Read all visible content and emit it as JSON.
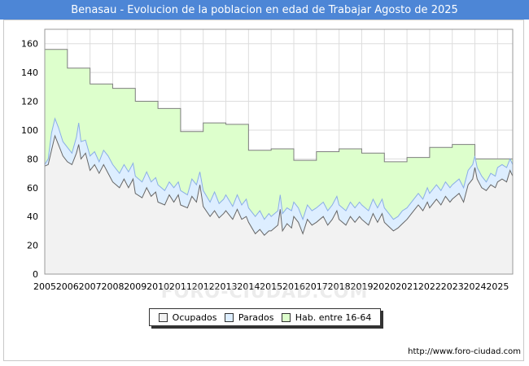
{
  "header": {
    "title": "Benasau - Evolucion de la poblacion en edad de Trabajar Agosto de 2025"
  },
  "footer": {
    "source": "http://www.foro-ciudad.com",
    "watermark": "FORO-CIUDAD.COM"
  },
  "colors": {
    "header_bg": "#4d86d6",
    "ocupados_fill": "#f2f2f2",
    "ocupados_line": "#666666",
    "parados_fill": "#ddeeff",
    "parados_line": "#8aaee6",
    "hab_fill": "#ddffcc",
    "hab_line": "#7f7f7f"
  },
  "chart_data": {
    "type": "area",
    "xlim": [
      2005,
      2025.67
    ],
    "ylim": [
      0,
      170
    ],
    "yticks": [
      0,
      20,
      40,
      60,
      80,
      100,
      120,
      140,
      160
    ],
    "xticks": [
      "2005",
      "2006",
      "2007",
      "2008",
      "2009",
      "2010",
      "2011",
      "2012",
      "2013",
      "2014",
      "2015",
      "2016",
      "2017",
      "2018",
      "2019",
      "2020",
      "2021",
      "2022",
      "2023",
      "2024",
      "2025"
    ],
    "grid": true,
    "legend_position": "bottom",
    "series": [
      {
        "name": "Hab. entre 16-64",
        "kind": "step",
        "x": [
          2005,
          2006,
          2007,
          2008,
          2009,
          2010,
          2011,
          2012,
          2013,
          2014,
          2015,
          2016,
          2017,
          2018,
          2019,
          2020,
          2021,
          2022,
          2023,
          2024
        ],
        "values": [
          156,
          143,
          132,
          129,
          120,
          115,
          99,
          105,
          104,
          86,
          87,
          79,
          85,
          87,
          84,
          78,
          81,
          88,
          90,
          80
        ]
      },
      {
        "name": "Parados",
        "kind": "line",
        "points": [
          [
            2005,
            76
          ],
          [
            2005.15,
            80
          ],
          [
            2005.3,
            98
          ],
          [
            2005.45,
            108
          ],
          [
            2005.6,
            102
          ],
          [
            2005.8,
            92
          ],
          [
            2006,
            88
          ],
          [
            2006.2,
            84
          ],
          [
            2006.4,
            95
          ],
          [
            2006.5,
            105
          ],
          [
            2006.6,
            92
          ],
          [
            2006.8,
            93
          ],
          [
            2007,
            82
          ],
          [
            2007.2,
            85
          ],
          [
            2007.4,
            78
          ],
          [
            2007.6,
            86
          ],
          [
            2007.8,
            82
          ],
          [
            2008,
            76
          ],
          [
            2008.3,
            70
          ],
          [
            2008.5,
            76
          ],
          [
            2008.7,
            71
          ],
          [
            2008.9,
            77
          ],
          [
            2009,
            68
          ],
          [
            2009.3,
            64
          ],
          [
            2009.5,
            71
          ],
          [
            2009.7,
            64
          ],
          [
            2009.9,
            67
          ],
          [
            2010,
            62
          ],
          [
            2010.3,
            58
          ],
          [
            2010.5,
            64
          ],
          [
            2010.7,
            60
          ],
          [
            2010.9,
            64
          ],
          [
            2011,
            58
          ],
          [
            2011.3,
            55
          ],
          [
            2011.5,
            66
          ],
          [
            2011.7,
            62
          ],
          [
            2011.85,
            71
          ],
          [
            2012,
            58
          ],
          [
            2012.3,
            50
          ],
          [
            2012.5,
            57
          ],
          [
            2012.7,
            49
          ],
          [
            2012.9,
            52
          ],
          [
            2013,
            55
          ],
          [
            2013.3,
            47
          ],
          [
            2013.5,
            55
          ],
          [
            2013.7,
            48
          ],
          [
            2013.9,
            52
          ],
          [
            2014,
            46
          ],
          [
            2014.3,
            40
          ],
          [
            2014.5,
            44
          ],
          [
            2014.7,
            38
          ],
          [
            2014.9,
            42
          ],
          [
            2015,
            40
          ],
          [
            2015.3,
            44
          ],
          [
            2015.4,
            55
          ],
          [
            2015.5,
            42
          ],
          [
            2015.7,
            46
          ],
          [
            2015.9,
            44
          ],
          [
            2016,
            50
          ],
          [
            2016.2,
            46
          ],
          [
            2016.4,
            38
          ],
          [
            2016.6,
            48
          ],
          [
            2016.8,
            44
          ],
          [
            2017,
            46
          ],
          [
            2017.3,
            50
          ],
          [
            2017.5,
            44
          ],
          [
            2017.7,
            48
          ],
          [
            2017.9,
            54
          ],
          [
            2018,
            48
          ],
          [
            2018.3,
            44
          ],
          [
            2018.5,
            50
          ],
          [
            2018.7,
            46
          ],
          [
            2018.9,
            50
          ],
          [
            2019,
            48
          ],
          [
            2019.3,
            44
          ],
          [
            2019.5,
            52
          ],
          [
            2019.7,
            46
          ],
          [
            2019.9,
            52
          ],
          [
            2020,
            46
          ],
          [
            2020.2,
            42
          ],
          [
            2020.4,
            38
          ],
          [
            2020.6,
            40
          ],
          [
            2020.8,
            44
          ],
          [
            2021,
            46
          ],
          [
            2021.3,
            52
          ],
          [
            2021.5,
            56
          ],
          [
            2021.7,
            52
          ],
          [
            2021.9,
            60
          ],
          [
            2022,
            56
          ],
          [
            2022.3,
            62
          ],
          [
            2022.5,
            58
          ],
          [
            2022.7,
            64
          ],
          [
            2022.9,
            60
          ],
          [
            2023,
            62
          ],
          [
            2023.3,
            66
          ],
          [
            2023.5,
            60
          ],
          [
            2023.7,
            72
          ],
          [
            2023.9,
            76
          ],
          [
            2024,
            82
          ],
          [
            2024.1,
            74
          ],
          [
            2024.3,
            68
          ],
          [
            2024.5,
            64
          ],
          [
            2024.7,
            70
          ],
          [
            2024.9,
            68
          ],
          [
            2025,
            74
          ],
          [
            2025.2,
            76
          ],
          [
            2025.4,
            74
          ],
          [
            2025.55,
            80
          ],
          [
            2025.67,
            76
          ]
        ]
      },
      {
        "name": "Ocupados",
        "kind": "line",
        "points": [
          [
            2005,
            75
          ],
          [
            2005.15,
            76
          ],
          [
            2005.3,
            86
          ],
          [
            2005.45,
            96
          ],
          [
            2005.6,
            90
          ],
          [
            2005.8,
            82
          ],
          [
            2006,
            78
          ],
          [
            2006.2,
            76
          ],
          [
            2006.4,
            84
          ],
          [
            2006.5,
            90
          ],
          [
            2006.6,
            80
          ],
          [
            2006.8,
            84
          ],
          [
            2007,
            72
          ],
          [
            2007.2,
            76
          ],
          [
            2007.4,
            70
          ],
          [
            2007.6,
            76
          ],
          [
            2007.8,
            70
          ],
          [
            2008,
            64
          ],
          [
            2008.3,
            60
          ],
          [
            2008.5,
            66
          ],
          [
            2008.7,
            60
          ],
          [
            2008.9,
            66
          ],
          [
            2009,
            56
          ],
          [
            2009.3,
            53
          ],
          [
            2009.5,
            60
          ],
          [
            2009.7,
            54
          ],
          [
            2009.9,
            57
          ],
          [
            2010,
            50
          ],
          [
            2010.3,
            48
          ],
          [
            2010.5,
            55
          ],
          [
            2010.7,
            50
          ],
          [
            2010.9,
            55
          ],
          [
            2011,
            48
          ],
          [
            2011.3,
            46
          ],
          [
            2011.5,
            54
          ],
          [
            2011.7,
            50
          ],
          [
            2011.85,
            62
          ],
          [
            2012,
            47
          ],
          [
            2012.3,
            40
          ],
          [
            2012.5,
            44
          ],
          [
            2012.7,
            39
          ],
          [
            2012.9,
            42
          ],
          [
            2013,
            44
          ],
          [
            2013.3,
            38
          ],
          [
            2013.5,
            45
          ],
          [
            2013.7,
            38
          ],
          [
            2013.9,
            40
          ],
          [
            2014,
            36
          ],
          [
            2014.3,
            28
          ],
          [
            2014.5,
            31
          ],
          [
            2014.7,
            27
          ],
          [
            2014.9,
            30
          ],
          [
            2015,
            30
          ],
          [
            2015.3,
            34
          ],
          [
            2015.4,
            45
          ],
          [
            2015.5,
            30
          ],
          [
            2015.7,
            35
          ],
          [
            2015.9,
            32
          ],
          [
            2016,
            40
          ],
          [
            2016.2,
            36
          ],
          [
            2016.4,
            28
          ],
          [
            2016.6,
            38
          ],
          [
            2016.8,
            34
          ],
          [
            2017,
            36
          ],
          [
            2017.3,
            40
          ],
          [
            2017.5,
            34
          ],
          [
            2017.7,
            38
          ],
          [
            2017.9,
            44
          ],
          [
            2018,
            38
          ],
          [
            2018.3,
            34
          ],
          [
            2018.5,
            40
          ],
          [
            2018.7,
            36
          ],
          [
            2018.9,
            40
          ],
          [
            2019,
            38
          ],
          [
            2019.3,
            34
          ],
          [
            2019.5,
            42
          ],
          [
            2019.7,
            36
          ],
          [
            2019.9,
            42
          ],
          [
            2020,
            36
          ],
          [
            2020.2,
            33
          ],
          [
            2020.4,
            30
          ],
          [
            2020.6,
            32
          ],
          [
            2020.8,
            35
          ],
          [
            2021,
            38
          ],
          [
            2021.3,
            44
          ],
          [
            2021.5,
            48
          ],
          [
            2021.7,
            44
          ],
          [
            2021.9,
            50
          ],
          [
            2022,
            46
          ],
          [
            2022.3,
            52
          ],
          [
            2022.5,
            48
          ],
          [
            2022.7,
            54
          ],
          [
            2022.9,
            50
          ],
          [
            2023,
            52
          ],
          [
            2023.3,
            56
          ],
          [
            2023.5,
            50
          ],
          [
            2023.7,
            62
          ],
          [
            2023.9,
            66
          ],
          [
            2024,
            74
          ],
          [
            2024.1,
            66
          ],
          [
            2024.3,
            60
          ],
          [
            2024.5,
            58
          ],
          [
            2024.7,
            62
          ],
          [
            2024.9,
            60
          ],
          [
            2025,
            64
          ],
          [
            2025.2,
            66
          ],
          [
            2025.4,
            64
          ],
          [
            2025.55,
            72
          ],
          [
            2025.67,
            68
          ]
        ]
      }
    ]
  }
}
